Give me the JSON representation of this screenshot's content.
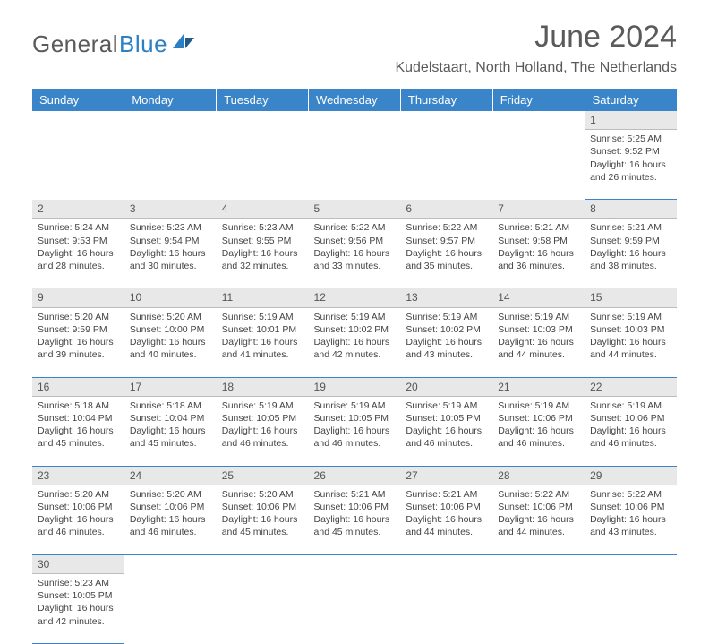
{
  "logo": {
    "general": "General",
    "blue": "Blue",
    "sail_color": "#2d7fc4"
  },
  "title": "June 2024",
  "location": "Kudelstaart, North Holland, The Netherlands",
  "header_bg": "#3a85c9",
  "header_text": "#ffffff",
  "daynum_bg": "#e8e8e8",
  "border_color": "#3a85c9",
  "weekdays": [
    "Sunday",
    "Monday",
    "Tuesday",
    "Wednesday",
    "Thursday",
    "Friday",
    "Saturday"
  ],
  "weeks": [
    {
      "nums": [
        "",
        "",
        "",
        "",
        "",
        "",
        "1"
      ],
      "cells": [
        null,
        null,
        null,
        null,
        null,
        null,
        {
          "sunrise": "5:25 AM",
          "sunset": "9:52 PM",
          "dl": "16 hours and 26 minutes."
        }
      ]
    },
    {
      "nums": [
        "2",
        "3",
        "4",
        "5",
        "6",
        "7",
        "8"
      ],
      "cells": [
        {
          "sunrise": "5:24 AM",
          "sunset": "9:53 PM",
          "dl": "16 hours and 28 minutes."
        },
        {
          "sunrise": "5:23 AM",
          "sunset": "9:54 PM",
          "dl": "16 hours and 30 minutes."
        },
        {
          "sunrise": "5:23 AM",
          "sunset": "9:55 PM",
          "dl": "16 hours and 32 minutes."
        },
        {
          "sunrise": "5:22 AM",
          "sunset": "9:56 PM",
          "dl": "16 hours and 33 minutes."
        },
        {
          "sunrise": "5:22 AM",
          "sunset": "9:57 PM",
          "dl": "16 hours and 35 minutes."
        },
        {
          "sunrise": "5:21 AM",
          "sunset": "9:58 PM",
          "dl": "16 hours and 36 minutes."
        },
        {
          "sunrise": "5:21 AM",
          "sunset": "9:59 PM",
          "dl": "16 hours and 38 minutes."
        }
      ]
    },
    {
      "nums": [
        "9",
        "10",
        "11",
        "12",
        "13",
        "14",
        "15"
      ],
      "cells": [
        {
          "sunrise": "5:20 AM",
          "sunset": "9:59 PM",
          "dl": "16 hours and 39 minutes."
        },
        {
          "sunrise": "5:20 AM",
          "sunset": "10:00 PM",
          "dl": "16 hours and 40 minutes."
        },
        {
          "sunrise": "5:19 AM",
          "sunset": "10:01 PM",
          "dl": "16 hours and 41 minutes."
        },
        {
          "sunrise": "5:19 AM",
          "sunset": "10:02 PM",
          "dl": "16 hours and 42 minutes."
        },
        {
          "sunrise": "5:19 AM",
          "sunset": "10:02 PM",
          "dl": "16 hours and 43 minutes."
        },
        {
          "sunrise": "5:19 AM",
          "sunset": "10:03 PM",
          "dl": "16 hours and 44 minutes."
        },
        {
          "sunrise": "5:19 AM",
          "sunset": "10:03 PM",
          "dl": "16 hours and 44 minutes."
        }
      ]
    },
    {
      "nums": [
        "16",
        "17",
        "18",
        "19",
        "20",
        "21",
        "22"
      ],
      "cells": [
        {
          "sunrise": "5:18 AM",
          "sunset": "10:04 PM",
          "dl": "16 hours and 45 minutes."
        },
        {
          "sunrise": "5:18 AM",
          "sunset": "10:04 PM",
          "dl": "16 hours and 45 minutes."
        },
        {
          "sunrise": "5:19 AM",
          "sunset": "10:05 PM",
          "dl": "16 hours and 46 minutes."
        },
        {
          "sunrise": "5:19 AM",
          "sunset": "10:05 PM",
          "dl": "16 hours and 46 minutes."
        },
        {
          "sunrise": "5:19 AM",
          "sunset": "10:05 PM",
          "dl": "16 hours and 46 minutes."
        },
        {
          "sunrise": "5:19 AM",
          "sunset": "10:06 PM",
          "dl": "16 hours and 46 minutes."
        },
        {
          "sunrise": "5:19 AM",
          "sunset": "10:06 PM",
          "dl": "16 hours and 46 minutes."
        }
      ]
    },
    {
      "nums": [
        "23",
        "24",
        "25",
        "26",
        "27",
        "28",
        "29"
      ],
      "cells": [
        {
          "sunrise": "5:20 AM",
          "sunset": "10:06 PM",
          "dl": "16 hours and 46 minutes."
        },
        {
          "sunrise": "5:20 AM",
          "sunset": "10:06 PM",
          "dl": "16 hours and 46 minutes."
        },
        {
          "sunrise": "5:20 AM",
          "sunset": "10:06 PM",
          "dl": "16 hours and 45 minutes."
        },
        {
          "sunrise": "5:21 AM",
          "sunset": "10:06 PM",
          "dl": "16 hours and 45 minutes."
        },
        {
          "sunrise": "5:21 AM",
          "sunset": "10:06 PM",
          "dl": "16 hours and 44 minutes."
        },
        {
          "sunrise": "5:22 AM",
          "sunset": "10:06 PM",
          "dl": "16 hours and 44 minutes."
        },
        {
          "sunrise": "5:22 AM",
          "sunset": "10:06 PM",
          "dl": "16 hours and 43 minutes."
        }
      ]
    },
    {
      "nums": [
        "30",
        "",
        "",
        "",
        "",
        "",
        ""
      ],
      "cells": [
        {
          "sunrise": "5:23 AM",
          "sunset": "10:05 PM",
          "dl": "16 hours and 42 minutes."
        },
        null,
        null,
        null,
        null,
        null,
        null
      ]
    }
  ]
}
